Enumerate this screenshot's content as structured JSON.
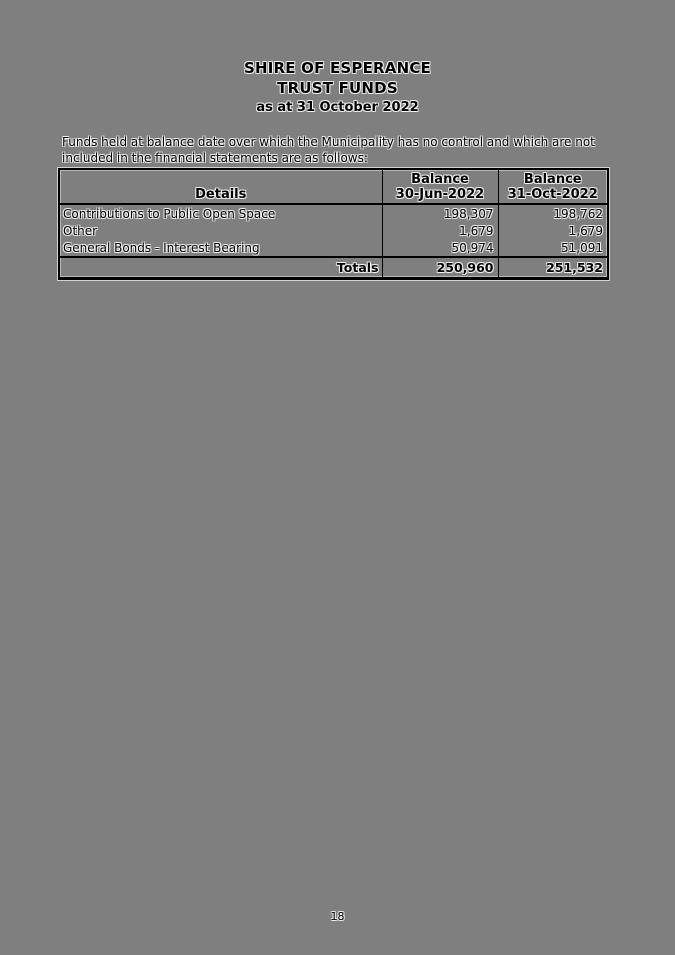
{
  "meta": {
    "background_color": "#7f7f7f",
    "ink_color": "#000000",
    "halo_color": "#ffffff"
  },
  "header": {
    "title_line1": "SHIRE OF ESPERANCE",
    "title_line2": "TRUST FUNDS",
    "title_line3": "as at 31 October 2022"
  },
  "intro": {
    "line1": "Funds held at balance date over which the Municipality has no control and which are not",
    "line2": "included in the financial statements are as follows:"
  },
  "table": {
    "header": {
      "details_label": "Details",
      "col_jun_line1": "Balance",
      "col_jun_line2": "30-Jun-2022",
      "col_oct_line1": "Balance",
      "col_oct_line2": "31-Oct-2022"
    },
    "rows": [
      {
        "details": "Contributions to Public Open Space",
        "balance_jun": "198,307",
        "balance_oct": "198,762"
      },
      {
        "details": "Other",
        "balance_jun": "1,679",
        "balance_oct": "1,679"
      },
      {
        "details": "General Bonds - Interest Bearing",
        "balance_jun": "50,974",
        "balance_oct": "51,091"
      }
    ],
    "totals": {
      "label": "Totals",
      "balance_jun": "250,960",
      "balance_oct": "251,532"
    }
  },
  "footer": {
    "page_number": "18"
  }
}
